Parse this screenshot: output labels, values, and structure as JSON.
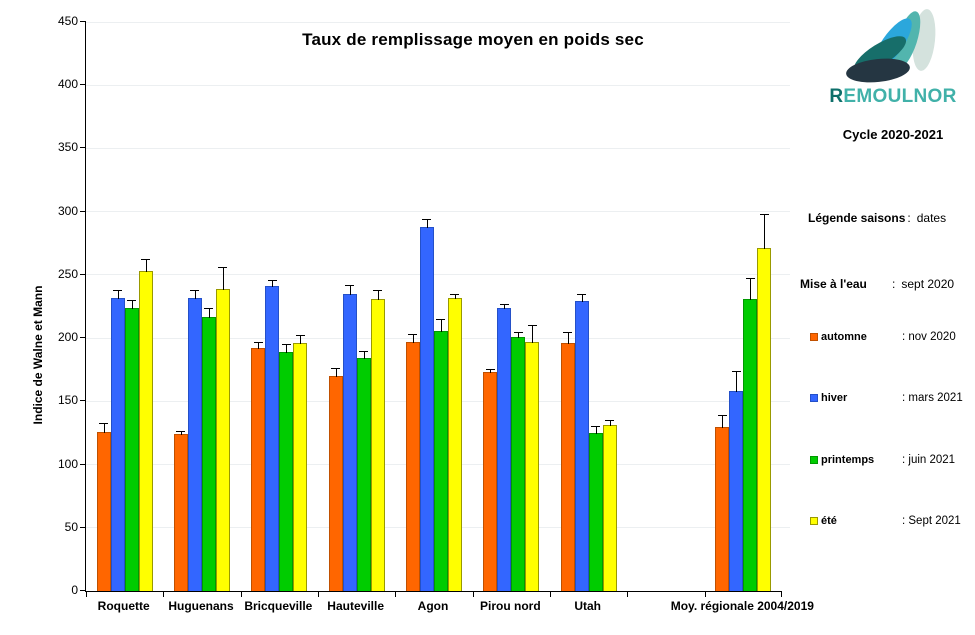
{
  "title": "Taux de remplissage moyen  en poids sec",
  "cycle": "Cycle 2020-2021",
  "logo": {
    "text_r": "R",
    "text_rest": "EMOULNOR",
    "r_color": "#0e6f6a",
    "rest_color": "#41b1a9",
    "petal_colors": [
      "#d4e2dd",
      "#52b5ae",
      "#2ba7dc",
      "#176e6a",
      "#253642"
    ]
  },
  "side_panel": {
    "legend_title": "Légende saisons",
    "sep": ":",
    "legend_value": "dates",
    "mise_label": "Mise à l'eau",
    "mise_value": "sept 2020",
    "items": [
      {
        "label": "automne",
        "date": ": nov 2020",
        "color": "#FF6600",
        "border": "#c05000"
      },
      {
        "label": "hiver",
        "date": ": mars 2021",
        "color": "#3366FF",
        "border": "#2450c8"
      },
      {
        "label": "printemps",
        "date": ": juin 2021",
        "color": "#00CC00",
        "border": "#009900"
      },
      {
        "label": "été",
        "date": ": Sept 2021",
        "color": "#FFFF00",
        "border": "#999900"
      }
    ]
  },
  "chart_data": {
    "type": "bar",
    "title": "Taux de remplissage moyen  en poids sec",
    "xlabel": "",
    "ylabel": "Indice de Walne et Mann",
    "ylim": [
      0,
      450
    ],
    "yticks": [
      0,
      50,
      100,
      150,
      200,
      250,
      300,
      350,
      400,
      450
    ],
    "grid": true,
    "error_bars": "plus-direction",
    "legend_position": "right-panel",
    "categories": [
      "Roquette",
      "Huguenans",
      "Bricqueville",
      "Hauteville",
      "Agon",
      "Pirou nord",
      "Utah",
      "",
      "Moy. régionale 2004/2019"
    ],
    "series": [
      {
        "name": "automne",
        "color": "#FF6600",
        "border": "#c05000",
        "values": [
          126,
          124,
          192,
          170,
          197,
          173,
          196,
          null,
          130
        ],
        "errors": [
          8,
          3,
          6,
          7,
          7,
          3,
          10,
          null,
          10
        ]
      },
      {
        "name": "hiver",
        "color": "#3366FF",
        "border": "#2450c8",
        "values": [
          232,
          232,
          241,
          235,
          288,
          224,
          229,
          null,
          158
        ],
        "errors": [
          7,
          7,
          6,
          8,
          7,
          4,
          7,
          null,
          17
        ]
      },
      {
        "name": "printemps",
        "color": "#00CC00",
        "border": "#009900",
        "values": [
          224,
          217,
          189,
          184,
          206,
          201,
          125,
          null,
          231
        ],
        "errors": [
          7,
          8,
          7,
          7,
          10,
          5,
          6,
          null,
          17
        ]
      },
      {
        "name": "été",
        "color": "#FFFF00",
        "border": "#999900",
        "values": [
          253,
          239,
          196,
          231,
          232,
          197,
          131,
          null,
          271
        ],
        "errors": [
          10,
          18,
          7,
          8,
          4,
          14,
          5,
          null,
          28
        ]
      }
    ]
  }
}
